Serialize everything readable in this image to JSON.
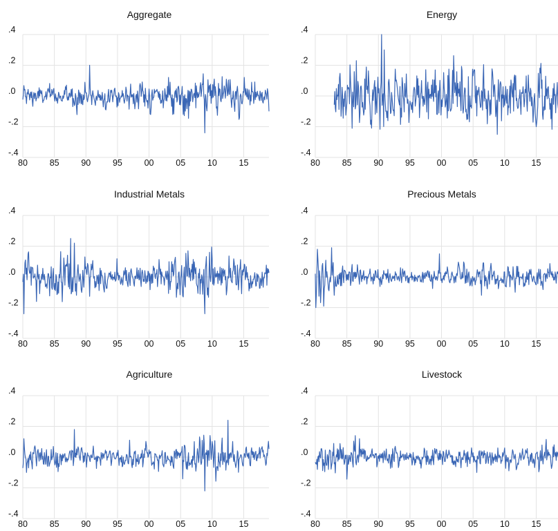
{
  "chart_data": [
    {
      "type": "line",
      "title": "Aggregate",
      "xlabel": "",
      "ylabel": "",
      "xlim": [
        1980,
        2019
      ],
      "ylim": [
        -0.4,
        0.4
      ],
      "x_start": 1980.0,
      "x_end": 2019.0,
      "grid": true,
      "xticks": [
        {
          "value": 1980,
          "label": "80"
        },
        {
          "value": 1985,
          "label": "85"
        },
        {
          "value": 1990,
          "label": "90"
        },
        {
          "value": 1995,
          "label": "95"
        },
        {
          "value": 2000,
          "label": "00"
        },
        {
          "value": 2005,
          "label": "05"
        },
        {
          "value": 2010,
          "label": "10"
        },
        {
          "value": 2015,
          "label": "15"
        }
      ],
      "yticks": [
        {
          "value": 0.4,
          "label": ".4"
        },
        {
          "value": 0.2,
          "label": ".2"
        },
        {
          "value": 0.0,
          "label": ".0"
        },
        {
          "value": -0.2,
          "label": "-.2"
        },
        {
          "value": -0.4,
          "label": "-.4"
        }
      ],
      "volatility": [
        [
          1980,
          0.035
        ],
        [
          1985,
          0.03
        ],
        [
          1990,
          0.04
        ],
        [
          1995,
          0.03
        ],
        [
          2000,
          0.045
        ],
        [
          2005,
          0.045
        ],
        [
          2008,
          0.055
        ],
        [
          2010,
          0.05
        ],
        [
          2015,
          0.045
        ],
        [
          2019,
          0.04
        ]
      ],
      "highlights": [
        {
          "x": 1990.6,
          "y": 0.2
        },
        {
          "x": 2008.8,
          "y": -0.24
        },
        {
          "x": 2014.3,
          "y": -0.14
        },
        {
          "x": 2019.0,
          "y": -0.1
        }
      ]
    },
    {
      "type": "line",
      "title": "Energy",
      "xlabel": "",
      "ylabel": "",
      "xlim": [
        1980,
        2019
      ],
      "ylim": [
        -0.4,
        0.4
      ],
      "x_start": 1983.0,
      "x_end": 2019.0,
      "grid": true,
      "xticks": [
        {
          "value": 1980,
          "label": "80"
        },
        {
          "value": 1985,
          "label": "85"
        },
        {
          "value": 1990,
          "label": "90"
        },
        {
          "value": 1995,
          "label": "95"
        },
        {
          "value": 2000,
          "label": "00"
        },
        {
          "value": 2005,
          "label": "05"
        },
        {
          "value": 2010,
          "label": "10"
        },
        {
          "value": 2015,
          "label": "15"
        }
      ],
      "yticks": [
        {
          "value": 0.4,
          "label": ".4"
        },
        {
          "value": 0.2,
          "label": ".2"
        },
        {
          "value": 0.0,
          "label": ".0"
        },
        {
          "value": -0.2,
          "label": "-.2"
        },
        {
          "value": -0.4,
          "label": "-.4"
        }
      ],
      "volatility": [
        [
          1983,
          0.06
        ],
        [
          1986,
          0.1
        ],
        [
          1990,
          0.09
        ],
        [
          1995,
          0.06
        ],
        [
          2000,
          0.085
        ],
        [
          2005,
          0.09
        ],
        [
          2008,
          0.1
        ],
        [
          2012,
          0.07
        ],
        [
          2015,
          0.09
        ],
        [
          2019,
          0.08
        ]
      ],
      "highlights": [
        {
          "x": 1985.8,
          "y": -0.21
        },
        {
          "x": 1986.5,
          "y": 0.23
        },
        {
          "x": 1990.5,
          "y": 0.4
        },
        {
          "x": 1990.9,
          "y": 0.3
        },
        {
          "x": 1999.0,
          "y": 0.17
        },
        {
          "x": 2008.8,
          "y": -0.25
        },
        {
          "x": 2015.0,
          "y": -0.2
        }
      ]
    },
    {
      "type": "line",
      "title": "Industrial Metals",
      "xlabel": "",
      "ylabel": "",
      "xlim": [
        1980,
        2019
      ],
      "ylim": [
        -0.4,
        0.4
      ],
      "x_start": 1980.0,
      "x_end": 2019.0,
      "grid": true,
      "xticks": [
        {
          "value": 1980,
          "label": "80"
        },
        {
          "value": 1985,
          "label": "85"
        },
        {
          "value": 1990,
          "label": "90"
        },
        {
          "value": 1995,
          "label": "95"
        },
        {
          "value": 2000,
          "label": "00"
        },
        {
          "value": 2005,
          "label": "05"
        },
        {
          "value": 2010,
          "label": "10"
        },
        {
          "value": 2015,
          "label": "15"
        }
      ],
      "yticks": [
        {
          "value": 0.4,
          "label": ".4"
        },
        {
          "value": 0.2,
          "label": ".2"
        },
        {
          "value": 0.0,
          "label": ".0"
        },
        {
          "value": -0.2,
          "label": "-.2"
        },
        {
          "value": -0.4,
          "label": "-.4"
        }
      ],
      "volatility": [
        [
          1980,
          0.06
        ],
        [
          1983,
          0.04
        ],
        [
          1987,
          0.09
        ],
        [
          1990,
          0.05
        ],
        [
          1995,
          0.04
        ],
        [
          2000,
          0.04
        ],
        [
          2005,
          0.07
        ],
        [
          2009,
          0.08
        ],
        [
          2012,
          0.05
        ],
        [
          2019,
          0.04
        ]
      ],
      "highlights": [
        {
          "x": 1980.2,
          "y": -0.24
        },
        {
          "x": 1980.4,
          "y": 0.11
        },
        {
          "x": 1982.2,
          "y": -0.16
        },
        {
          "x": 1987.6,
          "y": 0.25
        },
        {
          "x": 1988.2,
          "y": 0.22
        },
        {
          "x": 1988.5,
          "y": -0.12
        },
        {
          "x": 1989.8,
          "y": 0.13
        },
        {
          "x": 2006.2,
          "y": 0.17
        },
        {
          "x": 2008.8,
          "y": -0.24
        },
        {
          "x": 2009.6,
          "y": 0.16
        }
      ]
    },
    {
      "type": "line",
      "title": "Precious Metals",
      "xlabel": "",
      "ylabel": "",
      "xlim": [
        1980,
        2019
      ],
      "ylim": [
        -0.4,
        0.4
      ],
      "x_start": 1980.0,
      "x_end": 2019.0,
      "grid": true,
      "xticks": [
        {
          "value": 1980,
          "label": "80"
        },
        {
          "value": 1985,
          "label": "85"
        },
        {
          "value": 1990,
          "label": "90"
        },
        {
          "value": 1995,
          "label": "95"
        },
        {
          "value": 2000,
          "label": "00"
        },
        {
          "value": 2005,
          "label": "05"
        },
        {
          "value": 2010,
          "label": "10"
        },
        {
          "value": 2015,
          "label": "15"
        }
      ],
      "yticks": [
        {
          "value": 0.4,
          "label": ".4"
        },
        {
          "value": 0.2,
          "label": ".2"
        },
        {
          "value": 0.0,
          "label": ".0"
        },
        {
          "value": -0.2,
          "label": "-.2"
        },
        {
          "value": -0.4,
          "label": "-.4"
        }
      ],
      "volatility": [
        [
          1980,
          0.09
        ],
        [
          1982,
          0.06
        ],
        [
          1985,
          0.035
        ],
        [
          1990,
          0.025
        ],
        [
          1995,
          0.02
        ],
        [
          2000,
          0.03
        ],
        [
          2005,
          0.035
        ],
        [
          2010,
          0.04
        ],
        [
          2015,
          0.035
        ],
        [
          2019,
          0.03
        ]
      ],
      "highlights": [
        {
          "x": 1980.1,
          "y": -0.2
        },
        {
          "x": 1980.3,
          "y": 0.18
        },
        {
          "x": 1982.6,
          "y": 0.19
        },
        {
          "x": 1983.0,
          "y": -0.12
        },
        {
          "x": 1999.7,
          "y": 0.15
        },
        {
          "x": 2006.3,
          "y": -0.12
        },
        {
          "x": 2011.7,
          "y": -0.1
        }
      ]
    },
    {
      "type": "line",
      "title": "Agriculture",
      "xlabel": "",
      "ylabel": "",
      "xlim": [
        1980,
        2019
      ],
      "ylim": [
        -0.4,
        0.4
      ],
      "x_start": 1980.0,
      "x_end": 2019.0,
      "grid": true,
      "xticks": [
        {
          "value": 1980,
          "label": "80"
        },
        {
          "value": 1985,
          "label": "85"
        },
        {
          "value": 1990,
          "label": "90"
        },
        {
          "value": 1995,
          "label": "95"
        },
        {
          "value": 2000,
          "label": "00"
        },
        {
          "value": 2005,
          "label": "05"
        },
        {
          "value": 2010,
          "label": "10"
        },
        {
          "value": 2015,
          "label": "15"
        }
      ],
      "yticks": [
        {
          "value": 0.4,
          "label": ".4"
        },
        {
          "value": 0.2,
          "label": ".2"
        },
        {
          "value": 0.0,
          "label": ".0"
        },
        {
          "value": -0.2,
          "label": "-.2"
        },
        {
          "value": -0.4,
          "label": "-.4"
        }
      ],
      "volatility": [
        [
          1980,
          0.045
        ],
        [
          1985,
          0.03
        ],
        [
          1990,
          0.03
        ],
        [
          1995,
          0.03
        ],
        [
          2000,
          0.035
        ],
        [
          2005,
          0.045
        ],
        [
          2008,
          0.06
        ],
        [
          2012,
          0.055
        ],
        [
          2015,
          0.03
        ],
        [
          2019,
          0.03
        ]
      ],
      "highlights": [
        {
          "x": 1980.2,
          "y": 0.12
        },
        {
          "x": 1980.6,
          "y": -0.1
        },
        {
          "x": 1988.2,
          "y": 0.18
        },
        {
          "x": 1996.9,
          "y": 0.11
        },
        {
          "x": 2008.8,
          "y": -0.22
        },
        {
          "x": 2012.5,
          "y": 0.24
        }
      ]
    },
    {
      "type": "line",
      "title": "Livestock",
      "xlabel": "",
      "ylabel": "",
      "xlim": [
        1980,
        2019
      ],
      "ylim": [
        -0.4,
        0.4
      ],
      "x_start": 1980.0,
      "x_end": 2019.0,
      "grid": true,
      "xticks": [
        {
          "value": 1980,
          "label": "80"
        },
        {
          "value": 1985,
          "label": "85"
        },
        {
          "value": 1990,
          "label": "90"
        },
        {
          "value": 1995,
          "label": "95"
        },
        {
          "value": 2000,
          "label": "00"
        },
        {
          "value": 2005,
          "label": "05"
        },
        {
          "value": 2010,
          "label": "10"
        },
        {
          "value": 2015,
          "label": "15"
        }
      ],
      "yticks": [
        {
          "value": 0.4,
          "label": ".4"
        },
        {
          "value": 0.2,
          "label": ".2"
        },
        {
          "value": 0.0,
          "label": ".0"
        },
        {
          "value": -0.2,
          "label": "-.2"
        },
        {
          "value": -0.4,
          "label": "-.4"
        }
      ],
      "volatility": [
        [
          1980,
          0.04
        ],
        [
          1985,
          0.045
        ],
        [
          1990,
          0.03
        ],
        [
          1995,
          0.025
        ],
        [
          2000,
          0.03
        ],
        [
          2005,
          0.03
        ],
        [
          2010,
          0.03
        ],
        [
          2015,
          0.035
        ],
        [
          2019,
          0.04
        ]
      ],
      "highlights": [
        {
          "x": 1980.3,
          "y": -0.08
        },
        {
          "x": 1986.3,
          "y": 0.14
        },
        {
          "x": 1987.0,
          "y": 0.12
        },
        {
          "x": 2005.6,
          "y": -0.1
        },
        {
          "x": 2017.8,
          "y": 0.08
        },
        {
          "x": 2019.0,
          "y": -0.06
        }
      ]
    }
  ]
}
